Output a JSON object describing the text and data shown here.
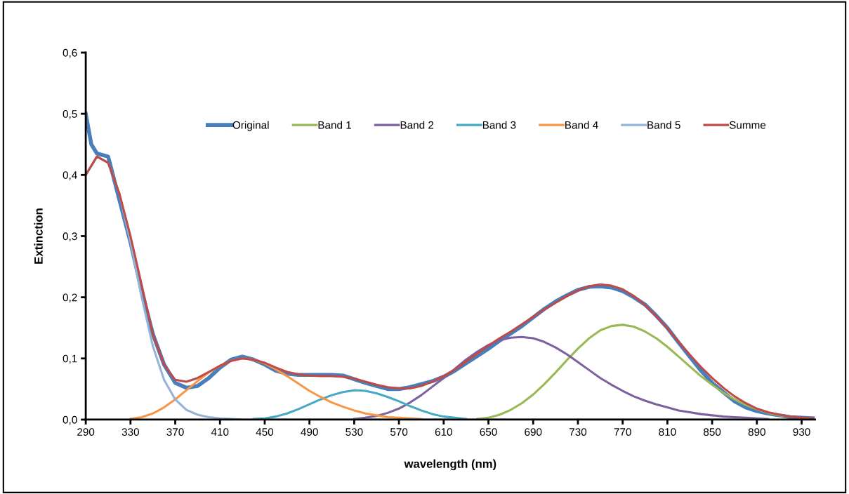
{
  "chart_data": {
    "type": "line",
    "xlabel": "wavelength (nm)",
    "ylabel": "Extinction",
    "x": [
      290,
      300,
      310,
      320,
      330,
      340,
      350,
      360,
      370,
      380,
      390,
      400,
      410,
      420,
      430,
      440,
      450,
      460,
      470,
      480,
      490,
      500,
      510,
      520,
      530,
      540,
      550,
      560,
      570,
      580,
      590,
      600,
      610,
      620,
      630,
      640,
      650,
      660,
      670,
      680,
      690,
      700,
      710,
      720,
      730,
      740,
      750,
      760,
      770,
      780,
      790,
      800,
      810,
      820,
      830,
      840,
      850,
      860,
      870,
      880,
      890,
      900,
      910,
      920,
      930,
      940
    ],
    "series": [
      {
        "name": "Original",
        "color": "#4a7ebb",
        "x": [
          290,
          295,
          300,
          310,
          320,
          330,
          340,
          350,
          360,
          370,
          380,
          390,
          400,
          410,
          420,
          430,
          440,
          450,
          460,
          470,
          480,
          490,
          500,
          510,
          520,
          530,
          540,
          550,
          560,
          570,
          580,
          590,
          600,
          610,
          620,
          630,
          640,
          650,
          660,
          670,
          680,
          690,
          700,
          710,
          720,
          730,
          740,
          750,
          760,
          770,
          780,
          790,
          800,
          810,
          820,
          830,
          840,
          850,
          860,
          870,
          880,
          890,
          900,
          910,
          920,
          930,
          940
        ],
        "values": [
          0.5,
          0.45,
          0.435,
          0.43,
          0.36,
          0.29,
          0.21,
          0.14,
          0.09,
          0.06,
          0.052,
          0.055,
          0.068,
          0.085,
          0.098,
          0.103,
          0.098,
          0.09,
          0.08,
          0.075,
          0.073,
          0.073,
          0.073,
          0.073,
          0.072,
          0.066,
          0.06,
          0.055,
          0.05,
          0.05,
          0.053,
          0.058,
          0.063,
          0.07,
          0.08,
          0.092,
          0.104,
          0.116,
          0.129,
          0.141,
          0.153,
          0.167,
          0.181,
          0.193,
          0.203,
          0.212,
          0.217,
          0.218,
          0.216,
          0.21,
          0.2,
          0.188,
          0.17,
          0.15,
          0.126,
          0.103,
          0.08,
          0.06,
          0.045,
          0.03,
          0.02,
          0.014,
          0.01,
          0.007,
          0.004,
          0.003,
          0.002
        ]
      },
      {
        "name": "Band 1",
        "color": "#98b954",
        "x": [
          640,
          650,
          660,
          670,
          680,
          690,
          700,
          710,
          720,
          730,
          740,
          750,
          760,
          770,
          780,
          790,
          800,
          810,
          820,
          830,
          840,
          850,
          860,
          870,
          880,
          890,
          900,
          910,
          920
        ],
        "values": [
          0.001,
          0.003,
          0.008,
          0.016,
          0.027,
          0.041,
          0.058,
          0.077,
          0.097,
          0.116,
          0.133,
          0.146,
          0.153,
          0.155,
          0.152,
          0.144,
          0.133,
          0.119,
          0.103,
          0.087,
          0.071,
          0.057,
          0.044,
          0.033,
          0.024,
          0.017,
          0.011,
          0.007,
          0.005
        ]
      },
      {
        "name": "Band 2",
        "color": "#7d60a0",
        "x": [
          530,
          540,
          550,
          560,
          570,
          580,
          590,
          600,
          610,
          620,
          630,
          640,
          650,
          660,
          670,
          680,
          690,
          700,
          710,
          720,
          730,
          740,
          750,
          760,
          770,
          780,
          790,
          800,
          810,
          820,
          830,
          840,
          850,
          860,
          870,
          880,
          890,
          900
        ],
        "values": [
          0.001,
          0.003,
          0.006,
          0.011,
          0.018,
          0.028,
          0.04,
          0.054,
          0.068,
          0.083,
          0.098,
          0.111,
          0.122,
          0.13,
          0.134,
          0.135,
          0.133,
          0.127,
          0.118,
          0.107,
          0.094,
          0.081,
          0.068,
          0.057,
          0.047,
          0.038,
          0.031,
          0.025,
          0.02,
          0.015,
          0.012,
          0.009,
          0.007,
          0.005,
          0.004,
          0.003,
          0.002,
          0.001
        ]
      },
      {
        "name": "Band 3",
        "color": "#46aac5",
        "x": [
          440,
          450,
          460,
          470,
          480,
          490,
          500,
          510,
          520,
          530,
          540,
          550,
          560,
          570,
          580,
          590,
          600,
          610,
          620,
          630
        ],
        "values": [
          0.001,
          0.002,
          0.005,
          0.01,
          0.017,
          0.025,
          0.033,
          0.04,
          0.045,
          0.048,
          0.047,
          0.043,
          0.037,
          0.03,
          0.022,
          0.015,
          0.009,
          0.005,
          0.003,
          0.001
        ]
      },
      {
        "name": "Band 4",
        "color": "#f79646",
        "x": [
          330,
          340,
          350,
          360,
          370,
          380,
          390,
          400,
          410,
          420,
          430,
          440,
          450,
          460,
          470,
          480,
          490,
          500,
          510,
          520,
          530,
          540,
          550,
          560,
          570,
          580,
          590
        ],
        "values": [
          0.001,
          0.004,
          0.01,
          0.02,
          0.033,
          0.048,
          0.063,
          0.077,
          0.088,
          0.096,
          0.1,
          0.098,
          0.092,
          0.082,
          0.071,
          0.059,
          0.047,
          0.037,
          0.028,
          0.021,
          0.015,
          0.01,
          0.007,
          0.004,
          0.003,
          0.002,
          0.001
        ]
      },
      {
        "name": "Band 5",
        "color": "#95b3d7",
        "x": [
          290,
          300,
          310,
          320,
          330,
          340,
          350,
          360,
          370,
          380,
          390,
          400,
          410,
          420,
          430,
          500,
          600,
          700,
          800,
          900
        ],
        "values": [
          0.4,
          0.43,
          0.42,
          0.37,
          0.29,
          0.2,
          0.12,
          0.065,
          0.033,
          0.016,
          0.008,
          0.004,
          0.002,
          0.001,
          0,
          0,
          0,
          0,
          0,
          0
        ]
      },
      {
        "name": "Summe",
        "color": "#be4b48",
        "values": [
          0.4,
          0.43,
          0.42,
          0.37,
          0.3,
          0.22,
          0.14,
          0.09,
          0.065,
          0.062,
          0.068,
          0.078,
          0.088,
          0.096,
          0.1,
          0.098,
          0.093,
          0.085,
          0.078,
          0.074,
          0.072,
          0.071,
          0.071,
          0.07,
          0.067,
          0.062,
          0.057,
          0.053,
          0.051,
          0.051,
          0.055,
          0.062,
          0.071,
          0.082,
          0.095,
          0.108,
          0.121,
          0.133,
          0.144,
          0.156,
          0.168,
          0.18,
          0.191,
          0.202,
          0.211,
          0.218,
          0.221,
          0.219,
          0.213,
          0.202,
          0.187,
          0.169,
          0.149,
          0.127,
          0.106,
          0.086,
          0.068,
          0.052,
          0.038,
          0.027,
          0.018,
          0.012,
          0.008,
          0.005,
          0.003,
          0.002
        ]
      }
    ],
    "xlim": [
      290,
      942
    ],
    "xticks": [
      290,
      330,
      370,
      410,
      450,
      490,
      530,
      570,
      610,
      650,
      690,
      730,
      770,
      810,
      850,
      890,
      930
    ],
    "ylim": [
      0,
      0.6
    ],
    "yticks": [
      {
        "value": 0,
        "label": "0,0"
      },
      {
        "value": 0.1,
        "label": "0,1"
      },
      {
        "value": 0.2,
        "label": "0,2"
      },
      {
        "value": 0.3,
        "label": "0,3"
      },
      {
        "value": 0.4,
        "label": "0,4"
      },
      {
        "value": 0.5,
        "label": "0,5"
      },
      {
        "value": 0.6,
        "label": "0,6"
      }
    ],
    "grid": false,
    "legend": "top",
    "marker": "none",
    "line_style": "solid"
  }
}
